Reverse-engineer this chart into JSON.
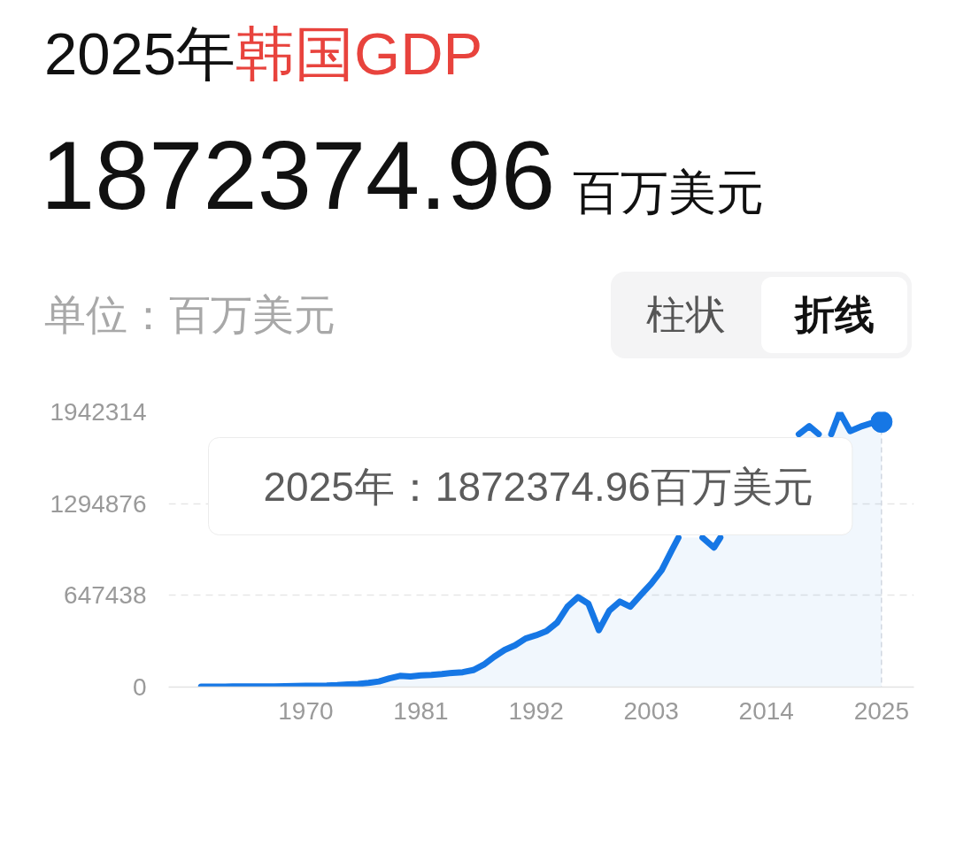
{
  "chart_data": {
    "type": "area",
    "title": "2025年韩国GDP",
    "subtitle": "1872374.96百万美元",
    "ylabel": "单位：百万美元",
    "x": [
      1960,
      1961,
      1962,
      1963,
      1964,
      1965,
      1966,
      1967,
      1968,
      1969,
      1970,
      1971,
      1972,
      1973,
      1974,
      1975,
      1976,
      1977,
      1978,
      1979,
      1980,
      1981,
      1982,
      1983,
      1984,
      1985,
      1986,
      1987,
      1988,
      1989,
      1990,
      1991,
      1992,
      1993,
      1994,
      1995,
      1996,
      1997,
      1998,
      1999,
      2000,
      2001,
      2002,
      2003,
      2004,
      2005,
      2005.6,
      2007,
      2007.9,
      2009,
      2009.6,
      2013,
      2017.1,
      2018.1,
      2019,
      2019.6,
      2020.2,
      2021,
      2022,
      2023,
      2024,
      2025
    ],
    "values": [
      3000,
      3000,
      3000,
      4000,
      4000,
      4000,
      5000,
      5000,
      6000,
      8000,
      9000,
      10000,
      11000,
      14000,
      19000,
      22000,
      30000,
      40000,
      62000,
      79000,
      75000,
      83000,
      86000,
      92000,
      100000,
      105000,
      120000,
      158000,
      214000,
      262000,
      295000,
      343000,
      366000,
      395000,
      454000,
      568000,
      635000,
      589000,
      402000,
      540000,
      604000,
      568000,
      650000,
      730000,
      825000,
      970000,
      1055000,
      null,
      1055000,
      985000,
      1055000,
      null,
      1785000,
      1842000,
      1785000,
      null,
      1785000,
      1940000,
      1807000,
      1838000,
      1862000,
      1872374.96
    ],
    "color": "#1677e5",
    "xlim": [
      1956.9,
      2028.1
    ],
    "ylim": [
      0,
      1942314
    ],
    "xticks": [
      1970,
      1981,
      1992,
      2003,
      2014,
      2025
    ],
    "yticks": [
      0,
      647438,
      1294876,
      1942314
    ],
    "grid": "y",
    "ref_lines": [
      {
        "axis": "x",
        "value": 2025,
        "color": "#d8dbe2",
        "line_style": "dashed"
      }
    ],
    "annotations": [
      "2025年：1872374.96百万美元",
      "柱状",
      "折线"
    ]
  }
}
